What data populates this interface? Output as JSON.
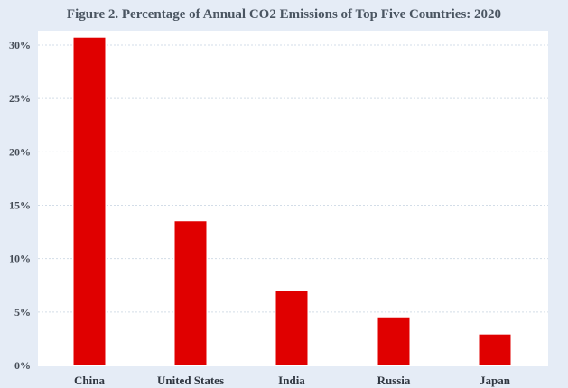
{
  "chart_data": {
    "type": "bar",
    "title": "Figure 2. Percentage of Annual CO2 Emissions of Top Five Countries: 2020",
    "xlabel": "",
    "ylabel": "",
    "categories": [
      "China",
      "United States",
      "India",
      "Russia",
      "Japan"
    ],
    "values": [
      30.7,
      13.5,
      7.0,
      4.5,
      2.9
    ],
    "ylim": [
      0,
      32
    ],
    "yticks": [
      0,
      5,
      10,
      15,
      20,
      25,
      30
    ],
    "ytick_labels": [
      "0%",
      "5%",
      "10%",
      "15%",
      "20%",
      "25%",
      "30%"
    ],
    "grid": true,
    "bar_color": "#e00000",
    "background_color": "#e5ecf6",
    "plot_background_color": "#ffffff",
    "grid_color": "#d3dde8"
  }
}
